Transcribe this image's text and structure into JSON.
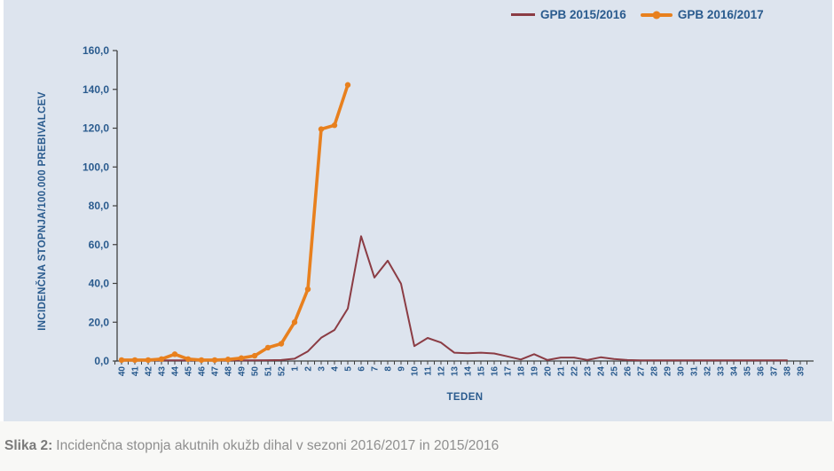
{
  "legend": {
    "items": [
      {
        "label": "GPB 2015/2016"
      },
      {
        "label": "GPB 2016/2017"
      }
    ]
  },
  "caption": {
    "label": "Slika 2:",
    "text": "Incidenčna stopnja akutnih okužb dihal v sezoni 2016/2017 in 2015/2016"
  },
  "colors": {
    "panel_background": "#dde4ee",
    "caption_background": "#f8f8f6",
    "axis_text": "#2a5b8e",
    "axis_line": "#404040",
    "series_2015": "#8b3c44",
    "series_2016": "#e8801e",
    "caption_text": "#8f8f8f"
  },
  "chart_data": {
    "type": "line",
    "title": "",
    "xlabel": "TEDEN",
    "ylabel": "INCIDENČNA STOPNJA/100.000 PREBIVALCEV",
    "ylim": [
      0,
      160
    ],
    "ytick_step": 20,
    "ytick_labels": [
      "0,0",
      "20,0",
      "40,0",
      "60,0",
      "80,0",
      "100,0",
      "120,0",
      "140,0",
      "160,0"
    ],
    "grid": false,
    "legend_position": "top-right",
    "categories": [
      "40",
      "41",
      "42",
      "43",
      "44",
      "45",
      "46",
      "47",
      "48",
      "49",
      "50",
      "51",
      "52",
      "1",
      "2",
      "3",
      "4",
      "5",
      "6",
      "7",
      "8",
      "9",
      "10",
      "11",
      "12",
      "13",
      "14",
      "15",
      "16",
      "17",
      "18",
      "19",
      "20",
      "21",
      "22",
      "23",
      "24",
      "25",
      "26",
      "27",
      "28",
      "29",
      "30",
      "31",
      "32",
      "33",
      "34",
      "35",
      "36",
      "37",
      "38",
      "39"
    ],
    "series": [
      {
        "name": "GPB 2015/2016",
        "color": "#8b3c44",
        "line_width": 2,
        "markers": false,
        "values": [
          0.3,
          0.3,
          0.3,
          0.3,
          0.3,
          0.3,
          0.3,
          0.3,
          0.3,
          0.3,
          0.3,
          0.4,
          0.5,
          1.2,
          5.0,
          12.0,
          16.0,
          27.0,
          64.3,
          43.0,
          51.7,
          39.8,
          7.7,
          11.9,
          9.5,
          4.3,
          4.0,
          4.3,
          3.9,
          2.4,
          0.8,
          3.5,
          0.5,
          1.8,
          1.8,
          0.5,
          1.9,
          1.0,
          0.5,
          0.3,
          0.3,
          0.3,
          0.3,
          0.3,
          0.3,
          0.3,
          0.3,
          0.3,
          0.3,
          0.3,
          0.3,
          null
        ]
      },
      {
        "name": "GPB 2016/2017",
        "color": "#e8801e",
        "line_width": 3.6,
        "markers": true,
        "values": [
          0.5,
          0.5,
          0.5,
          1.0,
          3.5,
          1.0,
          0.5,
          0.5,
          0.8,
          1.5,
          2.7,
          6.9,
          8.9,
          20.0,
          37.0,
          119.5,
          121.5,
          142.3,
          null,
          null,
          null,
          null,
          null,
          null,
          null,
          null,
          null,
          null,
          null,
          null,
          null,
          null,
          null,
          null,
          null,
          null,
          null,
          null,
          null,
          null,
          null,
          null,
          null,
          null,
          null,
          null,
          null,
          null,
          null,
          null,
          null,
          null
        ]
      }
    ]
  }
}
